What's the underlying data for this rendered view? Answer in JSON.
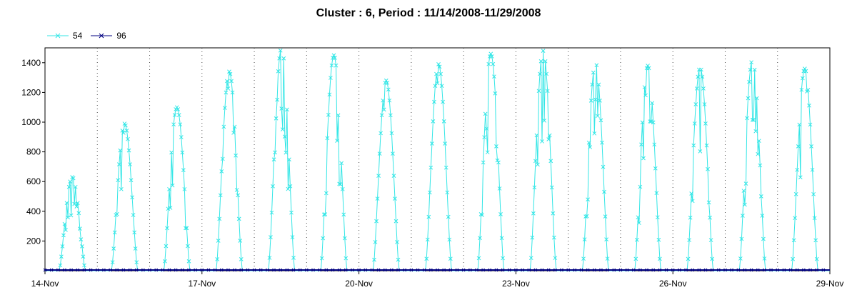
{
  "chart_data": {
    "type": "line",
    "title": "Cluster : 6, Period : 11/14/2008-11/29/2008",
    "xlabel": "",
    "ylabel": "",
    "x_ticks": [
      "14-Nov",
      "17-Nov",
      "20-Nov",
      "23-Nov",
      "26-Nov",
      "29-Nov"
    ],
    "y_ticks": [
      200,
      400,
      600,
      800,
      1000,
      1200,
      1400
    ],
    "xlim_days": [
      0,
      15
    ],
    "ylim": [
      0,
      1500
    ],
    "legend_position": "top-left",
    "series": [
      {
        "name": "54",
        "color": "#33E6E6",
        "daily_peaks": [
          630,
          990,
          1100,
          1340,
          1500,
          1450,
          1280,
          1390,
          1460,
          1480,
          1400,
          1380,
          1370,
          1420,
          1360
        ],
        "day_start_hours": [
          6.5,
          6.5,
          6.5,
          6.5,
          6.5,
          6.5,
          6.5,
          6.5,
          6.5,
          6.5,
          6.5,
          6.5,
          6.5,
          6.5,
          6.5
        ],
        "day_end_hours": [
          18.5,
          18.5,
          18.5,
          18.5,
          18.5,
          18.5,
          18.5,
          18.5,
          18.5,
          18.5,
          18.5,
          18.5,
          18.5,
          18.5,
          18.5
        ]
      },
      {
        "name": "96",
        "color": "#000080",
        "constant_value": 5
      }
    ]
  },
  "colors": {
    "axis": "#000000",
    "grid": "#000000",
    "background": "#ffffff"
  }
}
